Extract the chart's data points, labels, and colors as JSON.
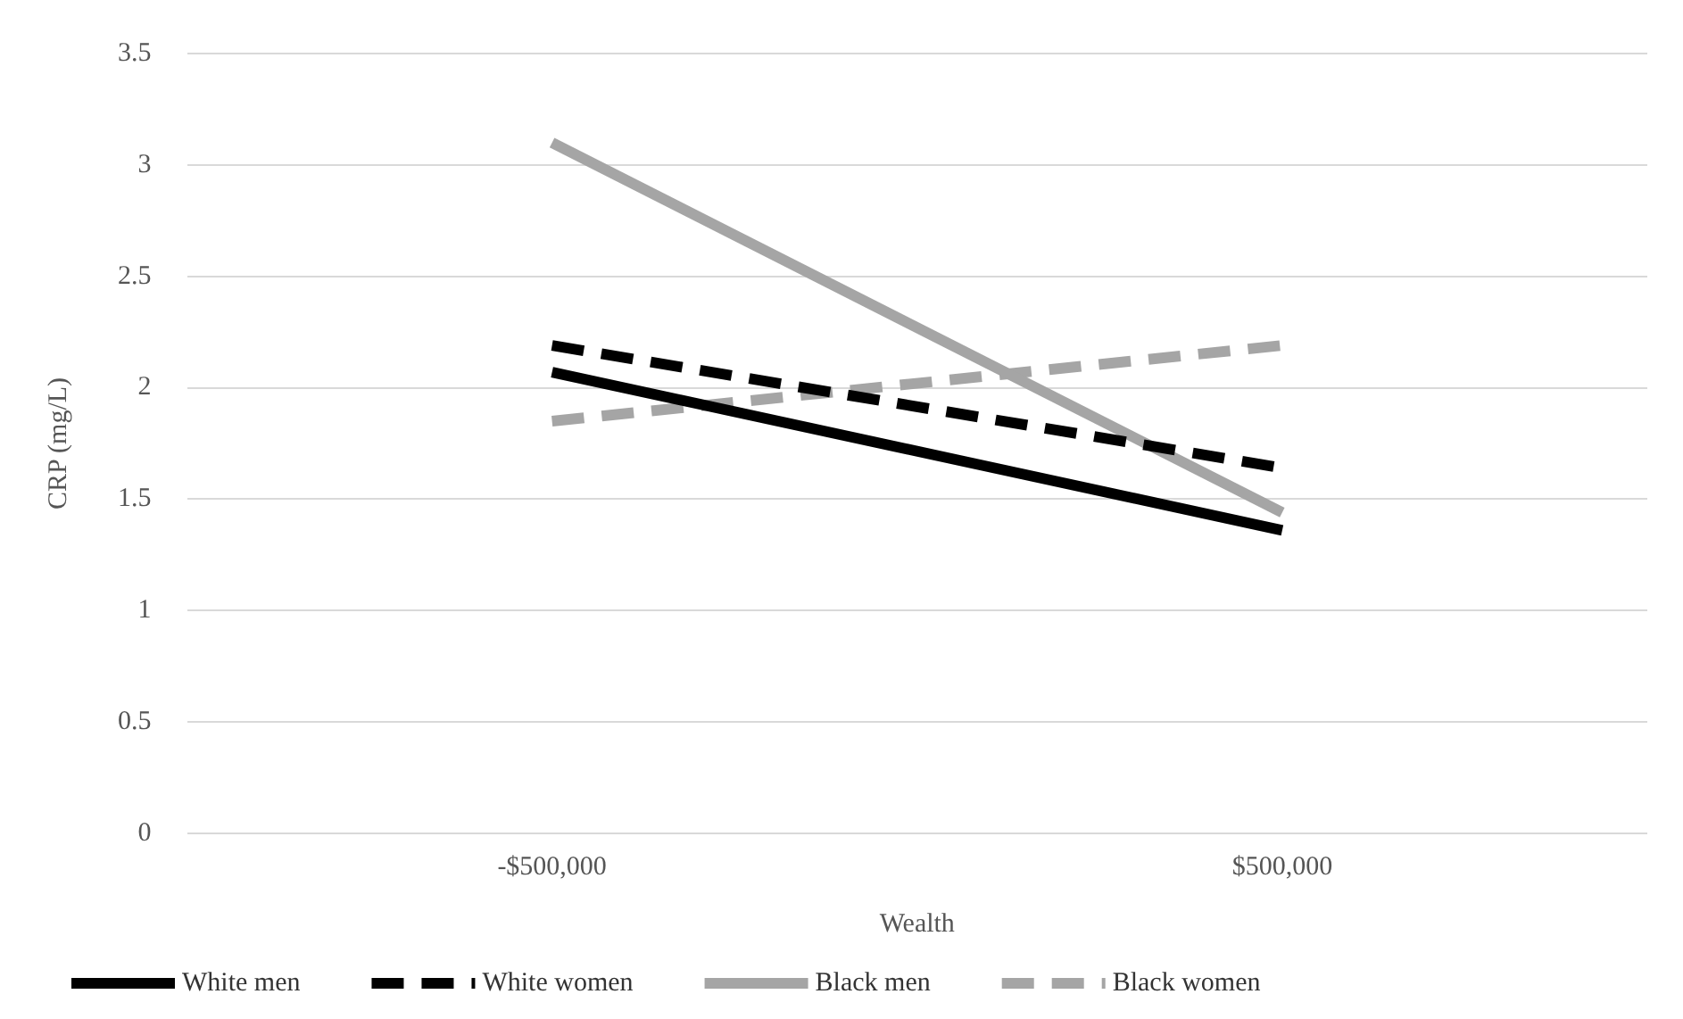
{
  "chart_data": {
    "type": "line",
    "xlabel": "Wealth",
    "ylabel": "CRP (mg/L)",
    "categories": [
      "-$500,000",
      "$500,000"
    ],
    "series": [
      {
        "name": "White men",
        "color": "#000000",
        "values": [
          2.07,
          1.36
        ],
        "line_style": "solid"
      },
      {
        "name": "White women",
        "color": "#000000",
        "values": [
          2.19,
          1.64
        ],
        "line_style": "dashed"
      },
      {
        "name": "Black men",
        "color": "#a5a5a5",
        "values": [
          3.1,
          1.44
        ],
        "line_style": "solid"
      },
      {
        "name": "Black women",
        "color": "#a5a5a5",
        "values": [
          1.85,
          2.19
        ],
        "line_style": "dashed"
      }
    ],
    "ylim": [
      0,
      3.5
    ],
    "yticks": [
      0,
      0.5,
      1,
      1.5,
      2,
      2.5,
      3,
      3.5
    ],
    "grid": "y",
    "legend": "bottom",
    "marker": "none"
  }
}
